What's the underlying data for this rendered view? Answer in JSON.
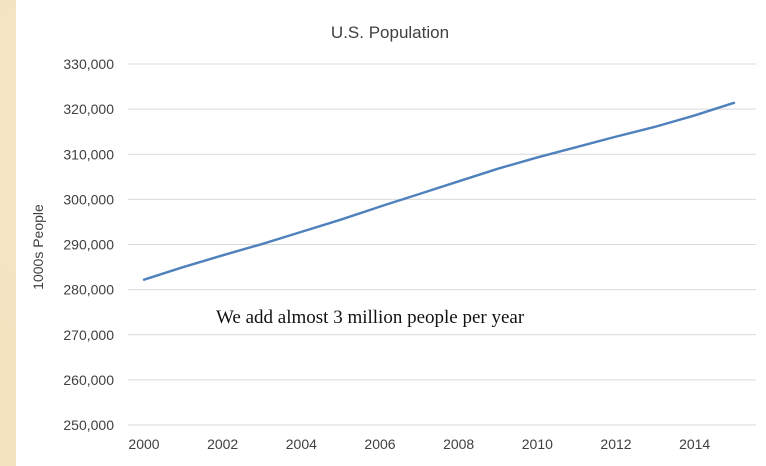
{
  "chart_data": {
    "type": "line",
    "title": "U.S. Population",
    "xlabel": "",
    "ylabel": "1000s People",
    "x": [
      2000,
      2001,
      2002,
      2003,
      2004,
      2005,
      2006,
      2007,
      2008,
      2009,
      2010,
      2011,
      2012,
      2013,
      2014,
      2015
    ],
    "series": [
      {
        "values": [
          282200,
          285000,
          287600,
          290100,
          292800,
          295500,
          298400,
          301200,
          304000,
          306800,
          309300,
          311600,
          313900,
          316100,
          318600,
          321400
        ],
        "color": "#4f81bd"
      }
    ],
    "xticks": [
      "2000",
      "2002",
      "2004",
      "2006",
      "2008",
      "2010",
      "2012",
      "2014"
    ],
    "yticks": [
      "250,000",
      "260,000",
      "270,000",
      "280,000",
      "290,000",
      "300,000",
      "310,000",
      "320,000",
      "330,000"
    ],
    "ylim": [
      250000,
      330000
    ],
    "xlim": [
      2000,
      2015
    ],
    "grid": true,
    "annotation": "We add almost 3 million people per year"
  }
}
